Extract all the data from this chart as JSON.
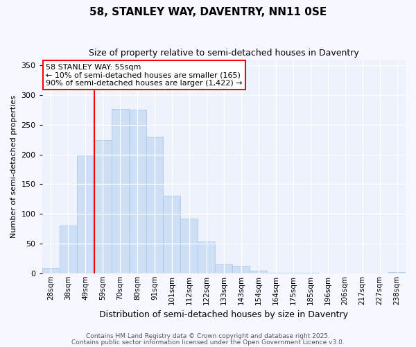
{
  "title": "58, STANLEY WAY, DAVENTRY, NN11 0SE",
  "subtitle": "Size of property relative to semi-detached houses in Daventry",
  "xlabel": "Distribution of semi-detached houses by size in Daventry",
  "ylabel": "Number of semi-detached properties",
  "categories": [
    "28sqm",
    "38sqm",
    "49sqm",
    "59sqm",
    "70sqm",
    "80sqm",
    "91sqm",
    "101sqm",
    "112sqm",
    "122sqm",
    "133sqm",
    "143sqm",
    "154sqm",
    "164sqm",
    "175sqm",
    "185sqm",
    "196sqm",
    "206sqm",
    "217sqm",
    "227sqm",
    "238sqm"
  ],
  "values": [
    9,
    80,
    198,
    224,
    277,
    275,
    230,
    130,
    92,
    53,
    15,
    13,
    4,
    1,
    1,
    1,
    0,
    0,
    0,
    0,
    2
  ],
  "bar_color": "#ccdff5",
  "bar_edge_color": "#aec8e8",
  "redline_index": 2,
  "annotation_title": "58 STANLEY WAY: 55sqm",
  "annotation_line1": "← 10% of semi-detached houses are smaller (165)",
  "annotation_line2": "90% of semi-detached houses are larger (1,422) →",
  "footnote1": "Contains HM Land Registry data © Crown copyright and database right 2025.",
  "footnote2": "Contains public sector information licensed under the Open Government Licence v3.0.",
  "ylim": [
    0,
    360
  ],
  "yticks": [
    0,
    50,
    100,
    150,
    200,
    250,
    300,
    350
  ],
  "background_color": "#f7f7ff",
  "plot_background": "#eef2fc",
  "title_fontsize": 11,
  "subtitle_fontsize": 9,
  "ylabel_fontsize": 8,
  "xlabel_fontsize": 9,
  "tick_fontsize": 8,
  "annot_fontsize": 8,
  "footnote_fontsize": 6.5
}
